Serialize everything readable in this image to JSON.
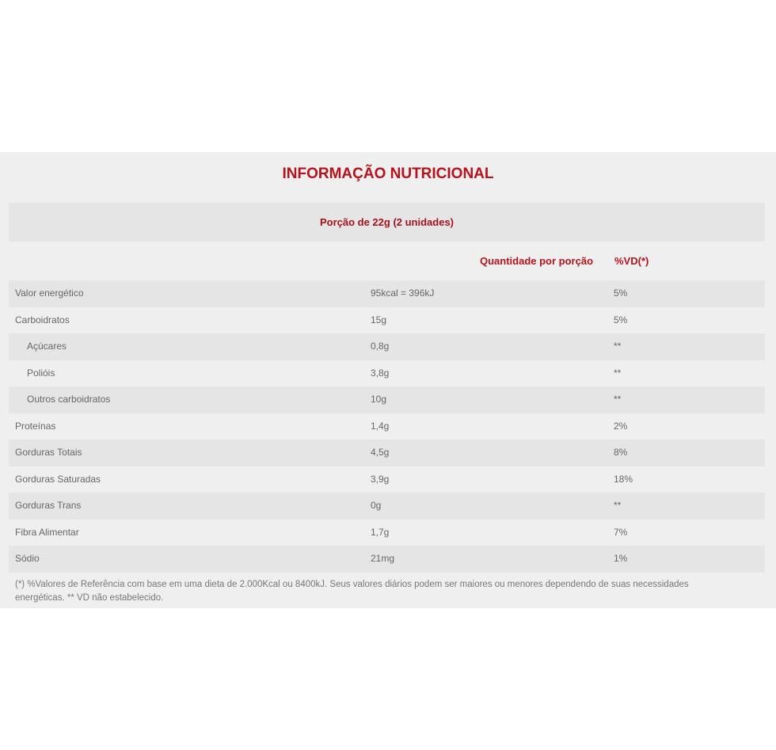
{
  "title": "INFORMAÇÃO NUTRICIONAL",
  "portion": "Porção de 22g (2 unidades)",
  "headers": {
    "quantity": "Quantidade por porção",
    "vd": "%VD(*)"
  },
  "rows": [
    {
      "name": "Valor energético",
      "qty": "95kcal = 396kJ",
      "vd": "5%"
    },
    {
      "name": "Carboidratos",
      "qty": "15g",
      "vd": "5%"
    },
    {
      "name": "Açúcares",
      "qty": "0,8g",
      "vd": "**",
      "sub": true
    },
    {
      "name": "Polióis",
      "qty": "3,8g",
      "vd": "**",
      "sub": true
    },
    {
      "name": "Outros carboidratos",
      "qty": "10g",
      "vd": "**",
      "sub": true
    },
    {
      "name": "Proteínas",
      "qty": "1,4g",
      "vd": "2%"
    },
    {
      "name": "Gorduras Totais",
      "qty": "4,5g",
      "vd": "8%"
    },
    {
      "name": "Gorduras Saturadas",
      "qty": "3,9g",
      "vd": "18%"
    },
    {
      "name": "Gorduras Trans",
      "qty": "0g",
      "vd": "**"
    },
    {
      "name": "Fibra Alimentar",
      "qty": "1,7g",
      "vd": "7%"
    },
    {
      "name": "Sódio",
      "qty": "21mg",
      "vd": "1%"
    }
  ],
  "footnote": "(*) %Valores de Referência com base em uma dieta de 2.000Kcal ou 8400kJ. Seus valores diários podem ser maiores ou menores dependendo de suas necessidades energéticas. ** VD não estabelecido.",
  "colors": {
    "accent": "#b5121b",
    "panel": "#efefef",
    "stripe": "#e5e5e5"
  }
}
